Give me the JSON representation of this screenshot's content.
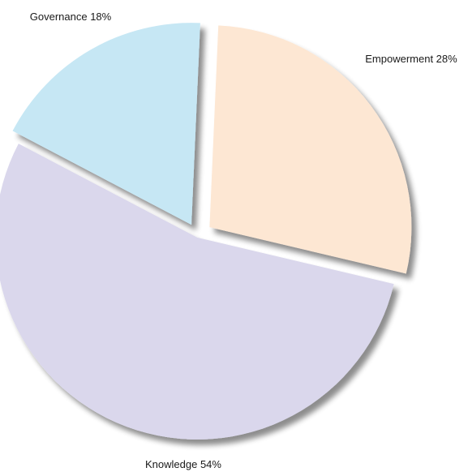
{
  "chart_data": {
    "type": "pie",
    "slices": [
      {
        "label": "Empowerment 28%",
        "value": 28,
        "color": "#fde7d3"
      },
      {
        "label": "Knowledge 54%",
        "value": 54,
        "color": "#dad7ec"
      },
      {
        "label": "Governance 18%",
        "value": 18,
        "color": "#c6e7f4"
      }
    ],
    "exploded": true,
    "shadow": true,
    "legend": "none"
  }
}
